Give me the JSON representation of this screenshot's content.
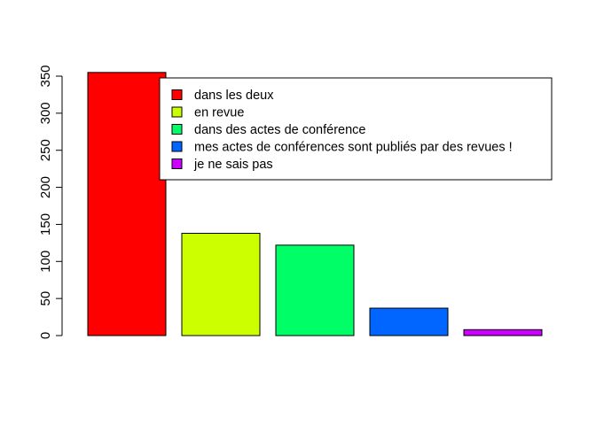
{
  "chart_data": {
    "type": "bar",
    "categories": [
      "dans les deux",
      "en revue",
      "dans des actes de conférence",
      "mes actes de conférences sont publiés par des revues !",
      "je ne sais pas"
    ],
    "values": [
      355,
      138,
      122,
      37,
      8
    ],
    "colors": [
      "#ff0000",
      "#ccff00",
      "#00ff66",
      "#0066ff",
      "#cc00ff"
    ],
    "ylim": [
      0,
      355
    ],
    "yticks": [
      "0",
      "50",
      "100",
      "150",
      "200",
      "250",
      "300",
      "350"
    ],
    "title": "",
    "xlabel": "",
    "ylabel": "",
    "legend": {
      "position": "top-right",
      "entries": [
        "dans les deux",
        "en revue",
        "dans des actes de conférence",
        "mes actes de conférences sont publiés par des revues !",
        "je ne sais pas"
      ]
    },
    "grid": false
  }
}
